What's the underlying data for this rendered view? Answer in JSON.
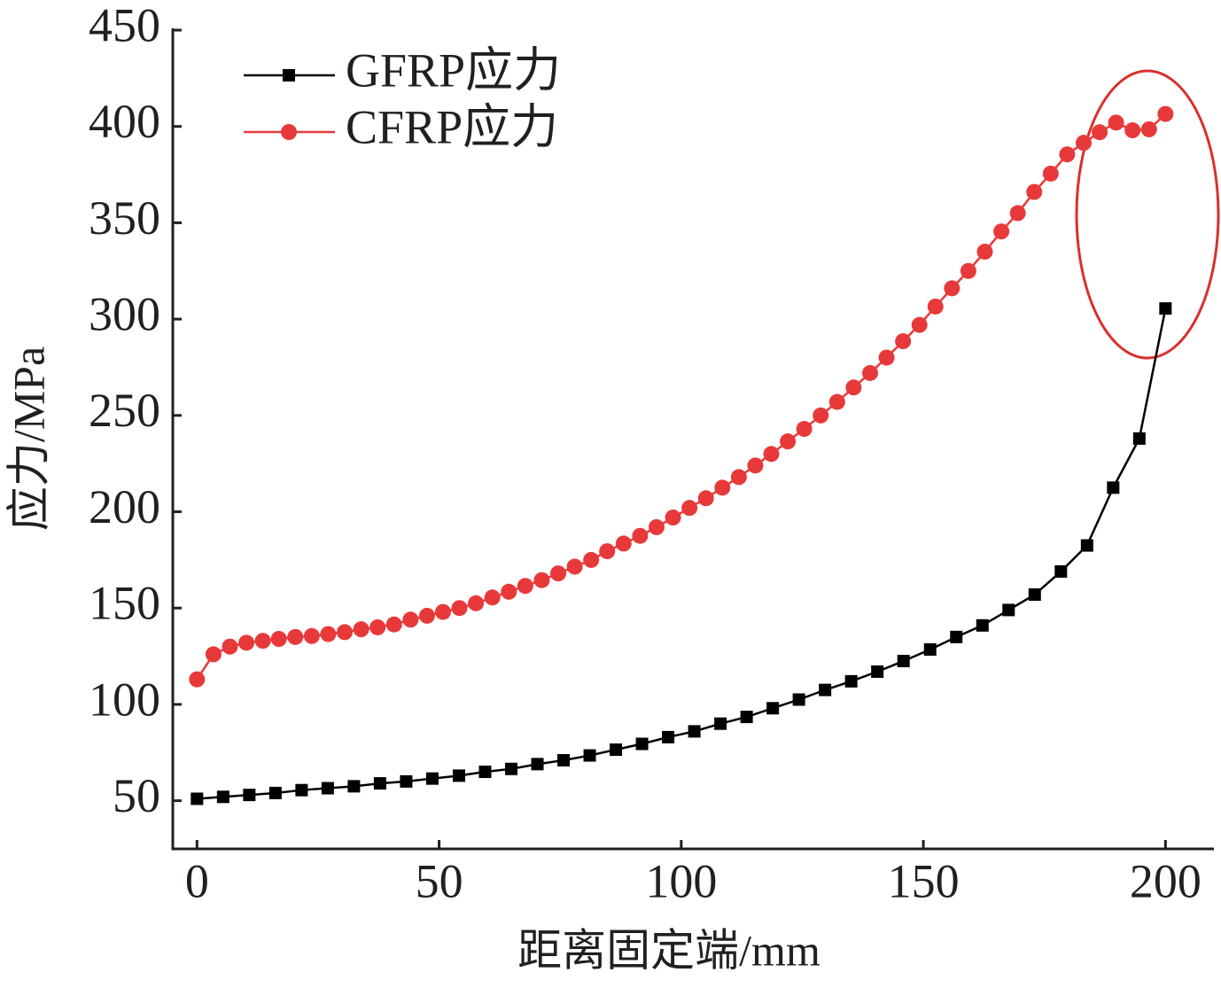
{
  "chart_data": {
    "type": "line",
    "x_label": "距离固定端/mm",
    "y_label": "应力/MPa",
    "xlim": [
      -5,
      210
    ],
    "xticks": [
      0,
      50,
      100,
      150,
      200
    ],
    "ylim": [
      25,
      450
    ],
    "yticks": [
      50,
      100,
      150,
      200,
      250,
      300,
      350,
      400,
      450
    ],
    "legend": "upper left",
    "series": [
      {
        "name": "GFRP应力",
        "color": "#000000",
        "marker": "square",
        "x": [
          0,
          5.4,
          10.8,
          16.2,
          21.6,
          27,
          32.4,
          37.8,
          43.2,
          48.6,
          54.1,
          59.5,
          64.9,
          70.3,
          75.7,
          81.1,
          86.5,
          91.9,
          97.3,
          102.7,
          108.1,
          113.5,
          118.9,
          124.3,
          129.7,
          135.1,
          140.5,
          145.9,
          151.4,
          156.8,
          162.2,
          167.6,
          173,
          178.4,
          183.8,
          189.2,
          194.6,
          200
        ],
        "values": [
          51,
          52,
          53,
          54,
          55.5,
          56.5,
          57.5,
          59,
          60,
          61.5,
          63,
          65,
          66.5,
          69,
          71,
          73.5,
          76.5,
          79.5,
          83,
          86,
          90,
          93.5,
          98,
          102.5,
          107.5,
          112,
          117,
          122.5,
          128.5,
          135,
          141,
          149,
          157,
          169,
          182.5,
          212.5,
          238,
          305.5
        ]
      },
      {
        "name": "CFRP应力",
        "color": "#e8393a",
        "marker": "circle",
        "x": [
          0,
          3.4,
          6.8,
          10.2,
          13.6,
          16.9,
          20.3,
          23.7,
          27.1,
          30.5,
          33.9,
          37.3,
          40.7,
          44.1,
          47.5,
          50.8,
          54.2,
          57.6,
          61,
          64.4,
          67.8,
          71.2,
          74.6,
          78,
          81.4,
          84.7,
          88.1,
          91.5,
          94.9,
          98.3,
          101.7,
          105.1,
          108.5,
          111.9,
          115.3,
          118.6,
          122,
          125.4,
          128.8,
          132.2,
          135.6,
          139,
          142.4,
          145.8,
          149.2,
          152.5,
          155.9,
          159.3,
          162.7,
          166.1,
          169.5,
          172.9,
          176.3,
          179.7,
          183.1,
          186.4,
          189.8,
          193.2,
          196.6,
          200
        ],
        "values": [
          113,
          126,
          130,
          132,
          133,
          134,
          135,
          135.5,
          136.5,
          137.5,
          139,
          140,
          141.5,
          144,
          146,
          148,
          150,
          152.5,
          155.5,
          158.5,
          161.5,
          164.5,
          168,
          171.5,
          175,
          179.5,
          183.5,
          187.5,
          192,
          197,
          202,
          207,
          212.5,
          218,
          224,
          230,
          236.5,
          243,
          250,
          257,
          264.5,
          272,
          280,
          288.5,
          297,
          306.5,
          316,
          325,
          335,
          345.5,
          355,
          366,
          375.5,
          385.5,
          391.5,
          397,
          402,
          398,
          398.5,
          406.5
        ]
      }
    ]
  }
}
